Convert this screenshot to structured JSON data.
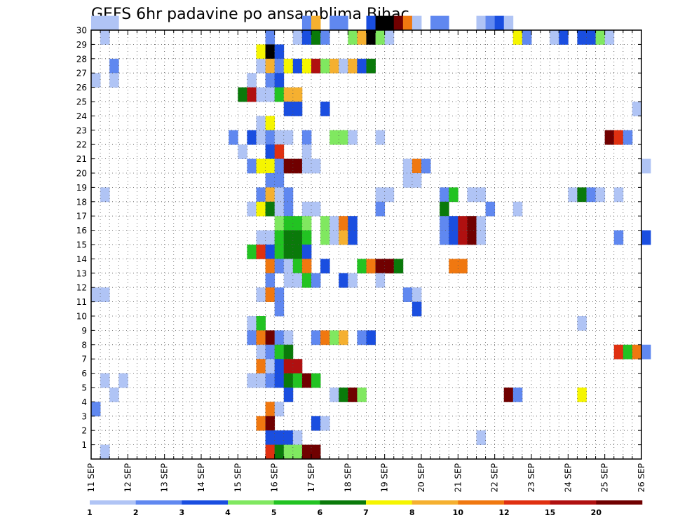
{
  "chart_data": {
    "type": "heatmap",
    "title": "GEFS 6hr padavine po ansamblima Bihac",
    "xlabel": "",
    "ylabel": "",
    "x_tick_labels": [
      "11 SEP",
      "12 SEP",
      "13 SEP",
      "14 SEP",
      "15 SEP",
      "16 SEP",
      "17 SEP",
      "18 SEP",
      "19 SEP",
      "20 SEP",
      "21 SEP",
      "22 SEP",
      "23 SEP",
      "24 SEP",
      "25 SEP",
      "26 SEP"
    ],
    "y_tick_labels": [
      "1",
      "2",
      "3",
      "4",
      "5",
      "6",
      "7",
      "8",
      "9",
      "10",
      "11",
      "12",
      "13",
      "14",
      "15",
      "16",
      "17",
      "18",
      "19",
      "20",
      "21",
      "22",
      "23",
      "24",
      "25",
      "26",
      "27",
      "28",
      "29",
      "30"
    ],
    "x_range": [
      "11 SEP 00Z",
      "26 SEP 00Z"
    ],
    "step_hours": 6,
    "members_range": [
      0,
      30
    ],
    "grid": "dotted",
    "legend_placement": "bottom",
    "legend": {
      "labels": [
        "1",
        "2",
        "3",
        "4",
        "5",
        "6",
        "7",
        "8",
        "10",
        "12",
        "15",
        "20"
      ],
      "colors": [
        "#b0c4f5",
        "#6088f0",
        "#1a4ee0",
        "#80e860",
        "#22c322",
        "#0a7a0a",
        "#f5f500",
        "#f5b030",
        "#f07810",
        "#e03010",
        "#b01010",
        "#700000"
      ]
    },
    "cells": [
      [
        30,
        0,
        1
      ],
      [
        30,
        1,
        1
      ],
      [
        30,
        2,
        1
      ],
      [
        30,
        23,
        2
      ],
      [
        30,
        24,
        8
      ],
      [
        30,
        26,
        2
      ],
      [
        30,
        27,
        2
      ],
      [
        30,
        30,
        3
      ],
      [
        30,
        31,
        13
      ],
      [
        30,
        32,
        14
      ],
      [
        30,
        33,
        12
      ],
      [
        30,
        34,
        9
      ],
      [
        30,
        35,
        1
      ],
      [
        30,
        37,
        2
      ],
      [
        30,
        38,
        2
      ],
      [
        30,
        42,
        1
      ],
      [
        30,
        43,
        2
      ],
      [
        30,
        44,
        3
      ],
      [
        30,
        45,
        1
      ],
      [
        29,
        1,
        1
      ],
      [
        29,
        19,
        2
      ],
      [
        29,
        22,
        1
      ],
      [
        29,
        23,
        3
      ],
      [
        29,
        24,
        6
      ],
      [
        29,
        25,
        2
      ],
      [
        29,
        28,
        4
      ],
      [
        29,
        29,
        8
      ],
      [
        29,
        30,
        14
      ],
      [
        29,
        31,
        4
      ],
      [
        29,
        32,
        1
      ],
      [
        29,
        46,
        7
      ],
      [
        29,
        47,
        2
      ],
      [
        29,
        50,
        1
      ],
      [
        29,
        51,
        3
      ],
      [
        29,
        53,
        3
      ],
      [
        29,
        54,
        3
      ],
      [
        29,
        55,
        4
      ],
      [
        29,
        56,
        1
      ],
      [
        28,
        18,
        7
      ],
      [
        28,
        19,
        13
      ],
      [
        28,
        20,
        3
      ],
      [
        27,
        2,
        2
      ],
      [
        27,
        18,
        1
      ],
      [
        27,
        19,
        8
      ],
      [
        27,
        20,
        2
      ],
      [
        27,
        21,
        7
      ],
      [
        27,
        22,
        3
      ],
      [
        27,
        23,
        7
      ],
      [
        27,
        24,
        11
      ],
      [
        27,
        25,
        4
      ],
      [
        27,
        26,
        8
      ],
      [
        27,
        27,
        1
      ],
      [
        27,
        28,
        8
      ],
      [
        27,
        29,
        3
      ],
      [
        27,
        30,
        6
      ],
      [
        26,
        0,
        1
      ],
      [
        26,
        2,
        1
      ],
      [
        26,
        17,
        1
      ],
      [
        26,
        19,
        2
      ],
      [
        26,
        20,
        3
      ],
      [
        25,
        16,
        6
      ],
      [
        25,
        17,
        11
      ],
      [
        25,
        18,
        1
      ],
      [
        25,
        19,
        1
      ],
      [
        25,
        20,
        5
      ],
      [
        25,
        21,
        8
      ],
      [
        25,
        22,
        8
      ],
      [
        24,
        21,
        3
      ],
      [
        24,
        22,
        3
      ],
      [
        24,
        25,
        3
      ],
      [
        24,
        59,
        1
      ],
      [
        23,
        18,
        1
      ],
      [
        23,
        19,
        7
      ],
      [
        22,
        15,
        2
      ],
      [
        22,
        17,
        3
      ],
      [
        22,
        18,
        1
      ],
      [
        22,
        19,
        2
      ],
      [
        22,
        20,
        1
      ],
      [
        22,
        21,
        1
      ],
      [
        22,
        23,
        2
      ],
      [
        22,
        26,
        4
      ],
      [
        22,
        27,
        4
      ],
      [
        22,
        28,
        1
      ],
      [
        22,
        31,
        1
      ],
      [
        22,
        56,
        12
      ],
      [
        22,
        57,
        10
      ],
      [
        22,
        58,
        2
      ],
      [
        21,
        16,
        1
      ],
      [
        21,
        19,
        3
      ],
      [
        21,
        20,
        10
      ],
      [
        21,
        23,
        1
      ],
      [
        20,
        17,
        2
      ],
      [
        20,
        18,
        7
      ],
      [
        20,
        19,
        7
      ],
      [
        20,
        20,
        2
      ],
      [
        20,
        21,
        12
      ],
      [
        20,
        22,
        12
      ],
      [
        20,
        23,
        1
      ],
      [
        20,
        24,
        1
      ],
      [
        20,
        34,
        1
      ],
      [
        20,
        35,
        9
      ],
      [
        20,
        36,
        2
      ],
      [
        20,
        60,
        1
      ],
      [
        19,
        19,
        2
      ],
      [
        19,
        20,
        2
      ],
      [
        19,
        34,
        1
      ],
      [
        19,
        35,
        1
      ],
      [
        18,
        1,
        1
      ],
      [
        18,
        18,
        2
      ],
      [
        18,
        19,
        8
      ],
      [
        18,
        20,
        1
      ],
      [
        18,
        21,
        2
      ],
      [
        18,
        31,
        1
      ],
      [
        18,
        32,
        1
      ],
      [
        18,
        38,
        2
      ],
      [
        18,
        39,
        5
      ],
      [
        18,
        41,
        1
      ],
      [
        18,
        42,
        1
      ],
      [
        18,
        52,
        1
      ],
      [
        18,
        53,
        6
      ],
      [
        18,
        54,
        2
      ],
      [
        18,
        55,
        1
      ],
      [
        18,
        57,
        1
      ],
      [
        17,
        17,
        1
      ],
      [
        17,
        18,
        7
      ],
      [
        17,
        19,
        6
      ],
      [
        17,
        20,
        1
      ],
      [
        17,
        21,
        2
      ],
      [
        17,
        23,
        1
      ],
      [
        17,
        24,
        1
      ],
      [
        17,
        31,
        2
      ],
      [
        17,
        38,
        6
      ],
      [
        17,
        43,
        2
      ],
      [
        17,
        46,
        1
      ],
      [
        16,
        20,
        4
      ],
      [
        16,
        21,
        5
      ],
      [
        16,
        22,
        5
      ],
      [
        16,
        23,
        4
      ],
      [
        16,
        25,
        4
      ],
      [
        16,
        26,
        1
      ],
      [
        16,
        27,
        9
      ],
      [
        16,
        28,
        3
      ],
      [
        16,
        38,
        2
      ],
      [
        16,
        39,
        3
      ],
      [
        16,
        40,
        11
      ],
      [
        16,
        41,
        12
      ],
      [
        16,
        42,
        1
      ],
      [
        15,
        18,
        1
      ],
      [
        15,
        19,
        1
      ],
      [
        15,
        20,
        5
      ],
      [
        15,
        21,
        6
      ],
      [
        15,
        22,
        6
      ],
      [
        15,
        23,
        5
      ],
      [
        15,
        25,
        4
      ],
      [
        15,
        26,
        1
      ],
      [
        15,
        27,
        8
      ],
      [
        15,
        28,
        3
      ],
      [
        15,
        38,
        2
      ],
      [
        15,
        39,
        3
      ],
      [
        15,
        40,
        11
      ],
      [
        15,
        41,
        12
      ],
      [
        15,
        42,
        1
      ],
      [
        15,
        57,
        2
      ],
      [
        15,
        60,
        3
      ],
      [
        14,
        17,
        5
      ],
      [
        14,
        18,
        10
      ],
      [
        14,
        19,
        3
      ],
      [
        14,
        20,
        5
      ],
      [
        14,
        21,
        6
      ],
      [
        14,
        22,
        6
      ],
      [
        14,
        23,
        3
      ],
      [
        13,
        19,
        9
      ],
      [
        13,
        20,
        2
      ],
      [
        13,
        21,
        1
      ],
      [
        13,
        22,
        5
      ],
      [
        13,
        23,
        9
      ],
      [
        13,
        25,
        3
      ],
      [
        13,
        29,
        5
      ],
      [
        13,
        30,
        9
      ],
      [
        13,
        31,
        12
      ],
      [
        13,
        32,
        12
      ],
      [
        13,
        33,
        6
      ],
      [
        13,
        39,
        9
      ],
      [
        13,
        40,
        9
      ],
      [
        12,
        19,
        2
      ],
      [
        12,
        21,
        1
      ],
      [
        12,
        22,
        1
      ],
      [
        12,
        23,
        5
      ],
      [
        12,
        24,
        2
      ],
      [
        12,
        27,
        3
      ],
      [
        12,
        28,
        1
      ],
      [
        12,
        31,
        1
      ],
      [
        11,
        0,
        1
      ],
      [
        11,
        1,
        1
      ],
      [
        11,
        18,
        1
      ],
      [
        11,
        19,
        9
      ],
      [
        11,
        20,
        2
      ],
      [
        11,
        34,
        2
      ],
      [
        11,
        35,
        1
      ],
      [
        10,
        20,
        2
      ],
      [
        10,
        35,
        3
      ],
      [
        9,
        17,
        1
      ],
      [
        9,
        18,
        5
      ],
      [
        9,
        53,
        1
      ],
      [
        8,
        17,
        2
      ],
      [
        8,
        18,
        9
      ],
      [
        8,
        19,
        12
      ],
      [
        8,
        20,
        2
      ],
      [
        8,
        21,
        1
      ],
      [
        8,
        24,
        2
      ],
      [
        8,
        25,
        9
      ],
      [
        8,
        26,
        4
      ],
      [
        8,
        27,
        8
      ],
      [
        8,
        29,
        2
      ],
      [
        8,
        30,
        3
      ],
      [
        7,
        18,
        1
      ],
      [
        7,
        19,
        2
      ],
      [
        7,
        20,
        5
      ],
      [
        7,
        21,
        6
      ],
      [
        7,
        57,
        10
      ],
      [
        7,
        58,
        5
      ],
      [
        7,
        59,
        9
      ],
      [
        7,
        60,
        2
      ],
      [
        6,
        18,
        9
      ],
      [
        6,
        19,
        1
      ],
      [
        6,
        20,
        3
      ],
      [
        6,
        21,
        11
      ],
      [
        6,
        22,
        11
      ],
      [
        5,
        1,
        1
      ],
      [
        5,
        3,
        1
      ],
      [
        5,
        17,
        1
      ],
      [
        5,
        18,
        1
      ],
      [
        5,
        19,
        2
      ],
      [
        5,
        20,
        3
      ],
      [
        5,
        21,
        6
      ],
      [
        5,
        22,
        5
      ],
      [
        5,
        23,
        12
      ],
      [
        5,
        24,
        5
      ],
      [
        4,
        2,
        1
      ],
      [
        4,
        21,
        3
      ],
      [
        4,
        26,
        1
      ],
      [
        4,
        27,
        6
      ],
      [
        4,
        28,
        12
      ],
      [
        4,
        29,
        4
      ],
      [
        4,
        45,
        12
      ],
      [
        4,
        46,
        2
      ],
      [
        4,
        53,
        7
      ],
      [
        3,
        0,
        2
      ],
      [
        3,
        19,
        9
      ],
      [
        3,
        20,
        1
      ],
      [
        2,
        18,
        9
      ],
      [
        2,
        19,
        12
      ],
      [
        2,
        24,
        3
      ],
      [
        2,
        25,
        1
      ],
      [
        1,
        19,
        3
      ],
      [
        1,
        20,
        3
      ],
      [
        1,
        21,
        3
      ],
      [
        1,
        22,
        1
      ],
      [
        1,
        42,
        1
      ],
      [
        0,
        1,
        1
      ],
      [
        0,
        19,
        10
      ],
      [
        0,
        20,
        6
      ],
      [
        0,
        21,
        4
      ],
      [
        0,
        22,
        4
      ],
      [
        0,
        23,
        12
      ],
      [
        0,
        24,
        12
      ]
    ]
  }
}
